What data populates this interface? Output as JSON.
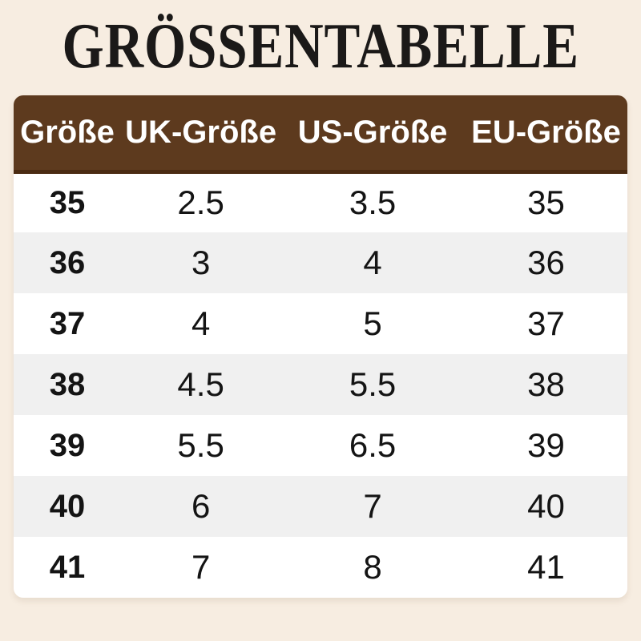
{
  "title": "GRÖSSENTABELLE",
  "colors": {
    "page_background": "#f7ede1",
    "header_background": "#5d3a1e",
    "header_border": "#4a2b12",
    "header_text": "#ffffff",
    "row_white": "#ffffff",
    "row_gray": "#f0f0f0",
    "body_text": "#141414",
    "title_text": "#1b1918"
  },
  "chart_data": {
    "type": "table",
    "title": "GRÖSSENTABELLE",
    "columns": [
      "Größe",
      "UK-Größe",
      "US-Größe",
      "EU-Größe"
    ],
    "rows": [
      [
        "35",
        "2.5",
        "3.5",
        "35"
      ],
      [
        "36",
        "3",
        "4",
        "36"
      ],
      [
        "37",
        "4",
        "5",
        "37"
      ],
      [
        "38",
        "4.5",
        "5.5",
        "38"
      ],
      [
        "39",
        "5.5",
        "6.5",
        "39"
      ],
      [
        "40",
        "6",
        "7",
        "40"
      ],
      [
        "41",
        "7",
        "8",
        "41"
      ]
    ],
    "layout": {
      "header_position": "top",
      "row_striping": "alternating white/gray starting white",
      "first_column_bold": true
    }
  }
}
